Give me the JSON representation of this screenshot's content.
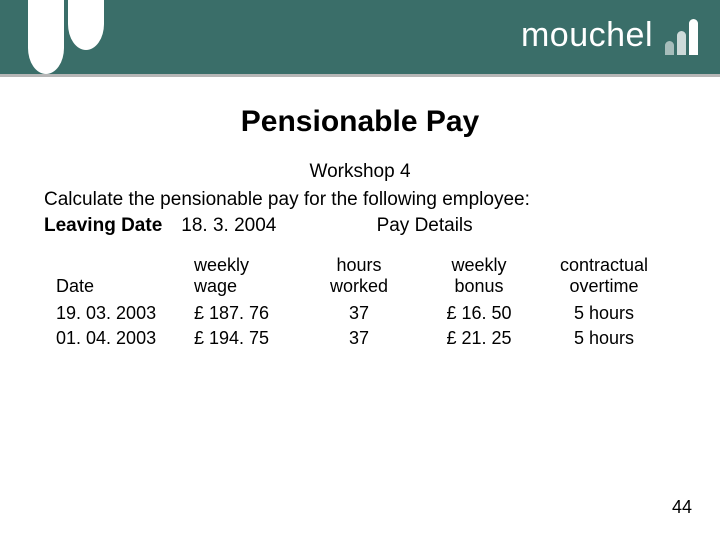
{
  "brand": {
    "name": "mouchel"
  },
  "title": "Pensionable Pay",
  "workshop": "Workshop 4",
  "instruction": "Calculate the pensionable pay for the following employee:",
  "leaving": {
    "label": "Leaving Date",
    "value": "18. 3. 2004",
    "pay_label": "Pay Details"
  },
  "table": {
    "headers": {
      "date": "Date",
      "wage1": "weekly",
      "wage2": "wage",
      "hours1": "hours",
      "hours2": "worked",
      "bonus1": "weekly",
      "bonus2": "bonus",
      "over1": "contractual",
      "over2": "overtime"
    },
    "rows": [
      {
        "date": "19. 03. 2003",
        "wage": "£ 187. 76",
        "hours": "37",
        "bonus": "£ 16. 50",
        "overtime": "5 hours"
      },
      {
        "date": "01. 04. 2003",
        "wage": "£ 194. 75",
        "hours": "37",
        "bonus": "£ 21. 25",
        "overtime": "5 hours"
      }
    ]
  },
  "page_number": "44",
  "colors": {
    "header_bg": "#3a6e69",
    "text": "#000000",
    "bg": "#ffffff"
  }
}
